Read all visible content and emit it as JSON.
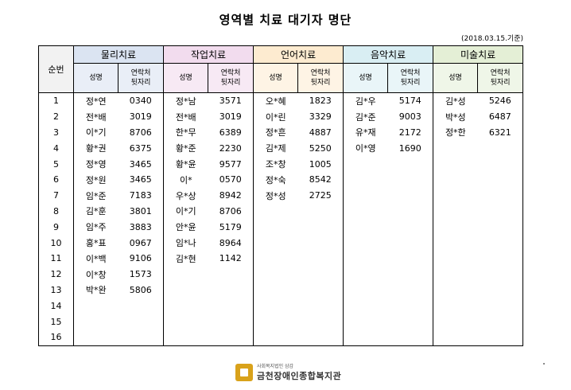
{
  "title": "영역별 치료 대기자 명단",
  "date_note": "(2018.03.15.기준)",
  "headers": {
    "seq": "순번",
    "groups": [
      "물리치료",
      "작업치료",
      "언어치료",
      "음악치료",
      "미술치료"
    ],
    "name": "성명",
    "contact_line1": "연락처",
    "contact_line2": "뒷자리"
  },
  "rows": [
    {
      "n": "1",
      "c": [
        [
          "정*연",
          "0340"
        ],
        [
          "정*남",
          "3571"
        ],
        [
          "오*혜",
          "1823"
        ],
        [
          "김*우",
          "5174"
        ],
        [
          "김*성",
          "5246"
        ]
      ]
    },
    {
      "n": "2",
      "c": [
        [
          "전*배",
          "3019"
        ],
        [
          "전*배",
          "3019"
        ],
        [
          "이*린",
          "3329"
        ],
        [
          "김*준",
          "9003"
        ],
        [
          "박*성",
          "6487"
        ]
      ]
    },
    {
      "n": "3",
      "c": [
        [
          "이*기",
          "8706"
        ],
        [
          "한*무",
          "6389"
        ],
        [
          "정*흔",
          "4887"
        ],
        [
          "유*재",
          "2172"
        ],
        [
          "정*한",
          "6321"
        ]
      ]
    },
    {
      "n": "4",
      "c": [
        [
          "황*권",
          "6375"
        ],
        [
          "황*준",
          "2230"
        ],
        [
          "김*제",
          "5250"
        ],
        [
          "이*영",
          "1690"
        ],
        [
          "",
          ""
        ]
      ]
    },
    {
      "n": "5",
      "c": [
        [
          "정*영",
          "3465"
        ],
        [
          "황*윤",
          "9577"
        ],
        [
          "조*창",
          "1005"
        ],
        [
          "",
          ""
        ],
        [
          "",
          ""
        ]
      ]
    },
    {
      "n": "6",
      "c": [
        [
          "정*원",
          "3465"
        ],
        [
          "이*",
          "0570"
        ],
        [
          "정*숙",
          "8542"
        ],
        [
          "",
          ""
        ],
        [
          "",
          ""
        ]
      ]
    },
    {
      "n": "7",
      "c": [
        [
          "임*준",
          "7183"
        ],
        [
          "우*상",
          "8942"
        ],
        [
          "정*성",
          "2725"
        ],
        [
          "",
          ""
        ],
        [
          "",
          ""
        ]
      ]
    },
    {
      "n": "8",
      "c": [
        [
          "김*훈",
          "3801"
        ],
        [
          "이*기",
          "8706"
        ],
        [
          "",
          ""
        ],
        [
          "",
          ""
        ],
        [
          "",
          ""
        ]
      ]
    },
    {
      "n": "9",
      "c": [
        [
          "임*주",
          "3883"
        ],
        [
          "안*윤",
          "5179"
        ],
        [
          "",
          ""
        ],
        [
          "",
          ""
        ],
        [
          "",
          ""
        ]
      ]
    },
    {
      "n": "10",
      "c": [
        [
          "홍*표",
          "0967"
        ],
        [
          "임*나",
          "8964"
        ],
        [
          "",
          ""
        ],
        [
          "",
          ""
        ],
        [
          "",
          ""
        ]
      ]
    },
    {
      "n": "11",
      "c": [
        [
          "이*백",
          "9106"
        ],
        [
          "김*현",
          "1142"
        ],
        [
          "",
          ""
        ],
        [
          "",
          ""
        ],
        [
          "",
          ""
        ]
      ]
    },
    {
      "n": "12",
      "c": [
        [
          "이*창",
          "1573"
        ],
        [
          "",
          ""
        ],
        [
          "",
          ""
        ],
        [
          "",
          ""
        ],
        [
          "",
          ""
        ]
      ]
    },
    {
      "n": "13",
      "c": [
        [
          "박*완",
          "5806"
        ],
        [
          "",
          ""
        ],
        [
          "",
          ""
        ],
        [
          "",
          ""
        ],
        [
          "",
          ""
        ]
      ]
    },
    {
      "n": "14",
      "c": [
        [
          "",
          ""
        ],
        [
          "",
          ""
        ],
        [
          "",
          ""
        ],
        [
          "",
          ""
        ],
        [
          "",
          ""
        ]
      ]
    },
    {
      "n": "15",
      "c": [
        [
          "",
          ""
        ],
        [
          "",
          ""
        ],
        [
          "",
          ""
        ],
        [
          "",
          ""
        ],
        [
          "",
          ""
        ]
      ]
    },
    {
      "n": "16",
      "c": [
        [
          "",
          ""
        ],
        [
          "",
          ""
        ],
        [
          "",
          ""
        ],
        [
          "",
          ""
        ],
        [
          "",
          ""
        ]
      ]
    }
  ],
  "footer": {
    "small": "사회복지법인 삼감",
    "name": "금천장애인종합복지관"
  }
}
